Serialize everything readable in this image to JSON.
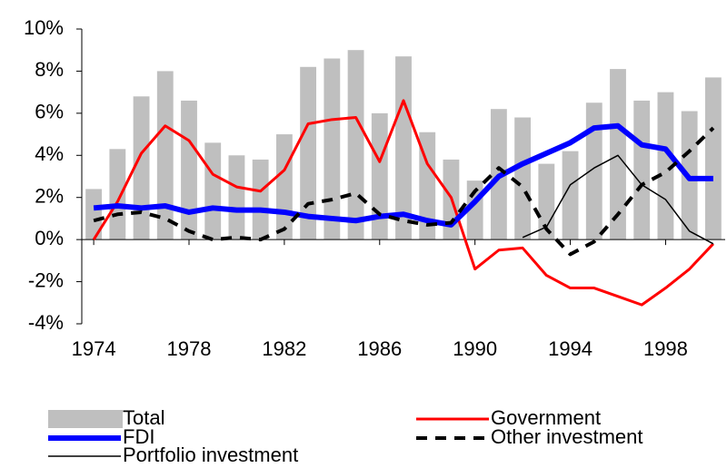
{
  "chart_data": {
    "type": "bar-line",
    "x": [
      1974,
      1975,
      1976,
      1977,
      1978,
      1979,
      1980,
      1981,
      1982,
      1983,
      1984,
      1985,
      1986,
      1987,
      1988,
      1989,
      1990,
      1991,
      1992,
      1993,
      1994,
      1995,
      1996,
      1997,
      1998,
      1999,
      2000
    ],
    "xlim": [
      1973.5,
      2000.5
    ],
    "xticks": [
      1974,
      1978,
      1982,
      1986,
      1990,
      1994,
      1998
    ],
    "ylim": [
      -4,
      10
    ],
    "yticks": [
      {
        "value": -4,
        "label": "-4%"
      },
      {
        "value": -2,
        "label": "-2%"
      },
      {
        "value": 0,
        "label": "0%"
      },
      {
        "value": 2,
        "label": "2%"
      },
      {
        "value": 4,
        "label": "4%"
      },
      {
        "value": 6,
        "label": "6%"
      },
      {
        "value": 8,
        "label": "8%"
      },
      {
        "value": 10,
        "label": "10%"
      }
    ],
    "series": [
      {
        "name": "Total",
        "kind": "bar",
        "color": "#bfbfbf",
        "values": [
          2.4,
          4.3,
          6.8,
          8.0,
          6.6,
          4.6,
          4.0,
          3.8,
          5.0,
          8.2,
          8.6,
          9.0,
          6.0,
          8.7,
          5.1,
          3.8,
          2.8,
          6.2,
          5.8,
          3.6,
          4.2,
          6.5,
          8.1,
          6.6,
          7.0,
          6.1,
          7.7
        ]
      },
      {
        "name": "Government",
        "kind": "line",
        "color": "#ff0000",
        "width": 3,
        "values": [
          0,
          1.8,
          4.1,
          5.4,
          4.7,
          3.1,
          2.5,
          2.3,
          3.3,
          5.5,
          5.7,
          5.8,
          3.7,
          6.6,
          3.6,
          2.0,
          -1.4,
          -0.5,
          -0.4,
          -1.7,
          -2.3,
          -2.3,
          -2.7,
          -3.1,
          -2.3,
          -1.4,
          -0.2
        ]
      },
      {
        "name": "FDI",
        "kind": "line",
        "color": "#0000ff",
        "width": 6,
        "values": [
          1.5,
          1.6,
          1.5,
          1.6,
          1.3,
          1.5,
          1.4,
          1.4,
          1.3,
          1.1,
          1.0,
          0.9,
          1.1,
          1.2,
          0.9,
          0.7,
          1.8,
          3.0,
          3.6,
          4.1,
          4.6,
          5.3,
          5.4,
          4.5,
          4.3,
          2.9,
          2.9
        ]
      },
      {
        "name": "Other investment",
        "kind": "line",
        "color": "#000000",
        "width": 4,
        "dash": true,
        "values": [
          0.9,
          1.2,
          1.3,
          1.0,
          0.4,
          0.0,
          0.1,
          0.0,
          0.5,
          1.7,
          1.9,
          2.2,
          1.2,
          0.9,
          0.7,
          0.8,
          2.3,
          3.4,
          2.5,
          0.5,
          -0.7,
          -0.1,
          1.2,
          2.6,
          3.2,
          4.2,
          5.3
        ]
      },
      {
        "name": "Portfolio investment",
        "kind": "line",
        "color": "#000000",
        "width": 1.5,
        "values": [
          null,
          null,
          null,
          null,
          null,
          null,
          null,
          null,
          null,
          null,
          null,
          null,
          null,
          null,
          null,
          null,
          null,
          null,
          0.1,
          0.6,
          2.6,
          3.4,
          4.0,
          2.6,
          1.9,
          0.4,
          -0.2
        ]
      }
    ]
  }
}
